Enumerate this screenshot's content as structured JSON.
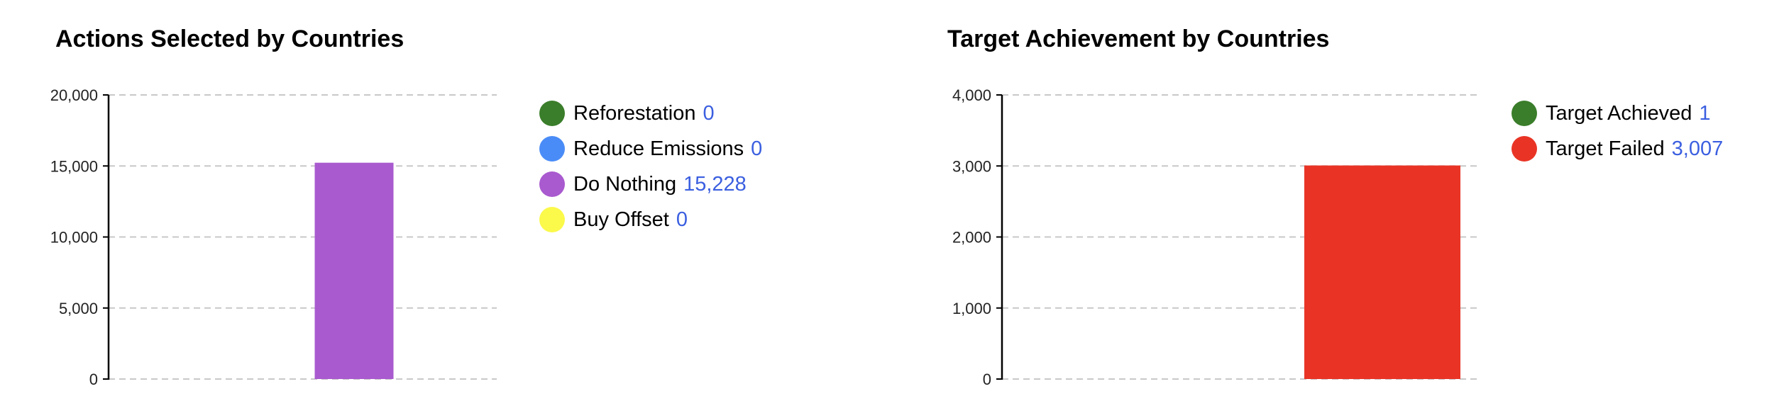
{
  "chart_data": [
    {
      "type": "bar",
      "title": "Actions Selected by Countries",
      "ylim": [
        0,
        20000
      ],
      "yticks": [
        "0",
        "5,000",
        "10,000",
        "15,000",
        "20,000"
      ],
      "ytick_values": [
        0,
        5000,
        10000,
        15000,
        20000
      ],
      "grid": true,
      "legend_position": "right",
      "series": [
        {
          "name": "Reforestation",
          "value": 0,
          "value_label": "0",
          "color": "#3a7d2a"
        },
        {
          "name": "Reduce Emissions",
          "value": 0,
          "value_label": "0",
          "color": "#4a8cf7"
        },
        {
          "name": "Do Nothing",
          "value": 15228,
          "value_label": "15,228",
          "color": "#a95acf"
        },
        {
          "name": "Buy Offset",
          "value": 0,
          "value_label": "0",
          "color": "#fbf94a"
        }
      ]
    },
    {
      "type": "bar",
      "title": "Target Achievement by Countries",
      "ylim": [
        0,
        4000
      ],
      "yticks": [
        "0",
        "1,000",
        "2,000",
        "3,000",
        "4,000"
      ],
      "ytick_values": [
        0,
        1000,
        2000,
        3000,
        4000
      ],
      "grid": true,
      "legend_position": "right",
      "series": [
        {
          "name": "Target Achieved",
          "value": 1,
          "value_label": "1",
          "color": "#3a7d2a"
        },
        {
          "name": "Target Failed",
          "value": 3007,
          "value_label": "3,007",
          "color": "#e93425"
        }
      ]
    }
  ]
}
